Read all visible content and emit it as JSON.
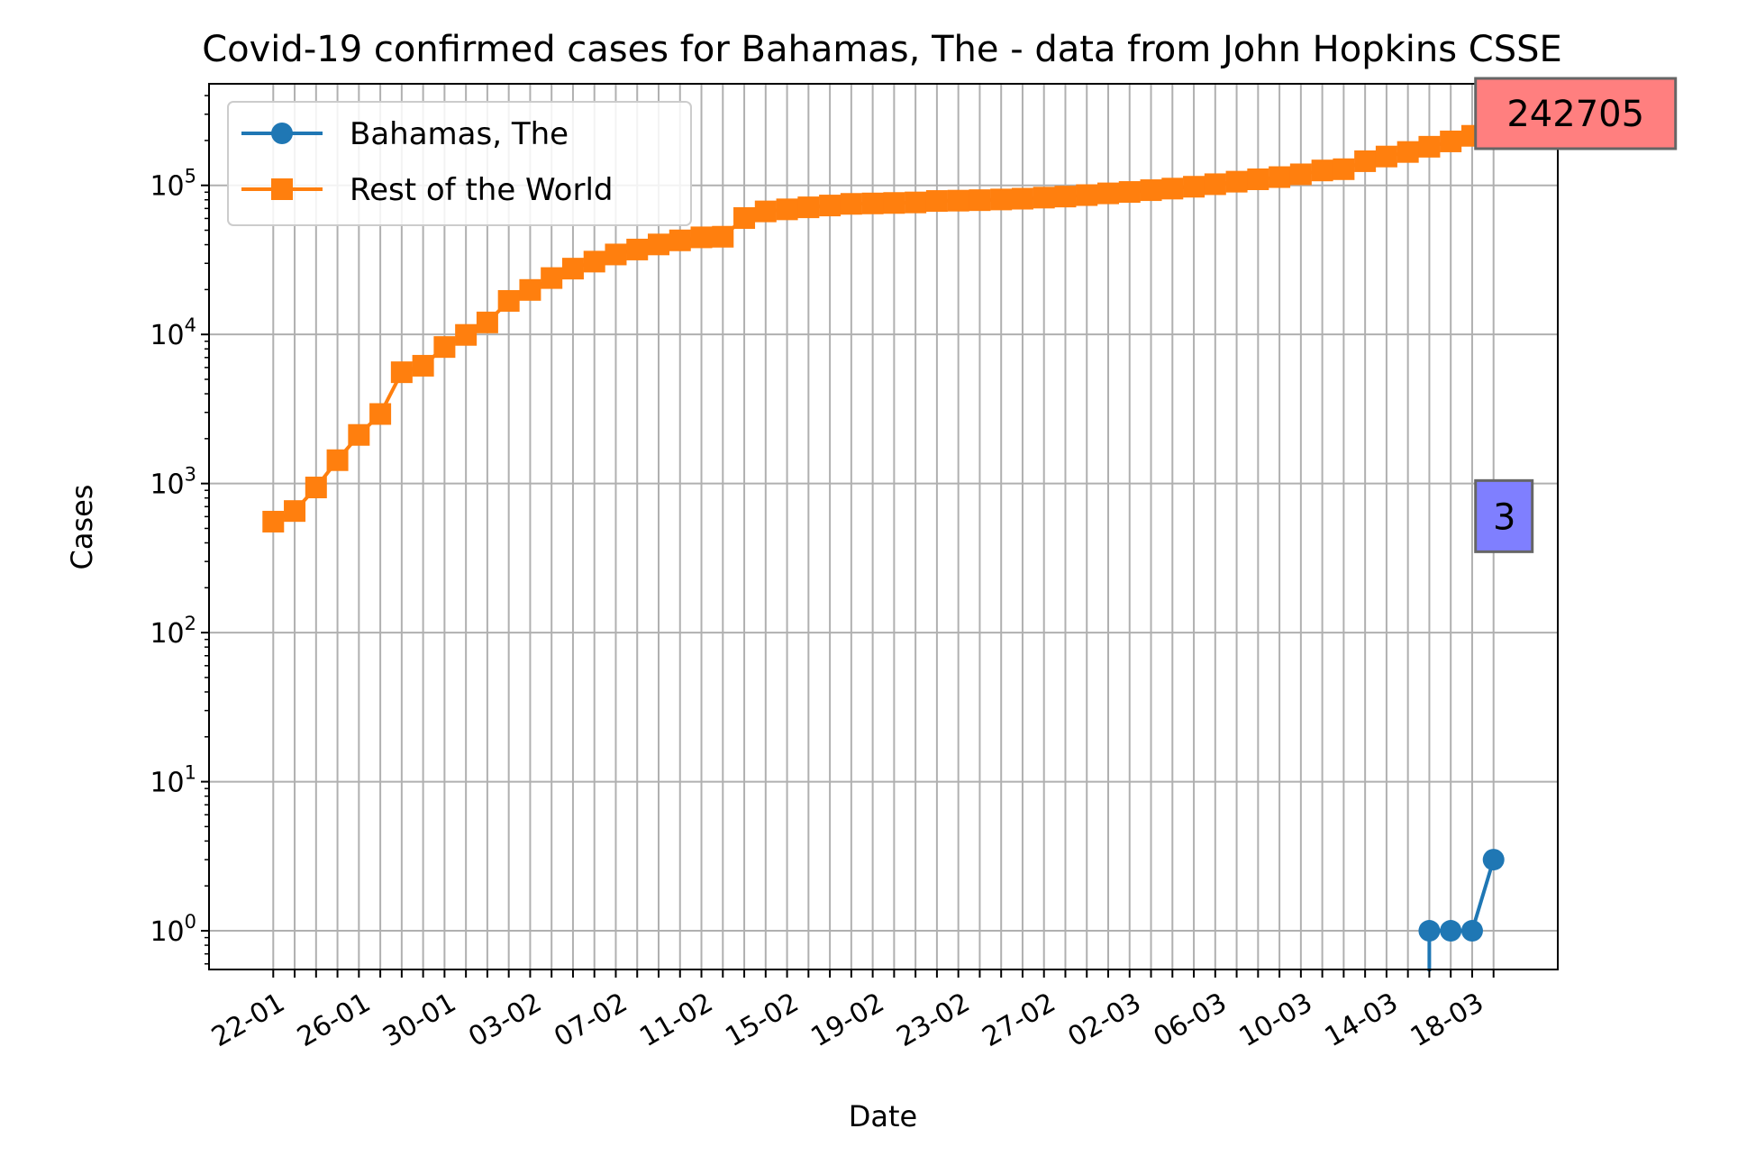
{
  "chart_data": {
    "type": "line",
    "title": "Covid-19 confirmed cases for Bahamas, The - data from John Hopkins CSSE",
    "xlabel": "Date",
    "ylabel": "Cases",
    "y_scale": "log",
    "ylim": [
      0.55,
      480000
    ],
    "y_ticks": [
      {
        "value": 1,
        "base": "10",
        "exp": "0"
      },
      {
        "value": 10,
        "base": "10",
        "exp": "1"
      },
      {
        "value": 100,
        "base": "10",
        "exp": "2"
      },
      {
        "value": 1000,
        "base": "10",
        "exp": "3"
      },
      {
        "value": 10000,
        "base": "10",
        "exp": "4"
      },
      {
        "value": 100000,
        "base": "10",
        "exp": "5"
      }
    ],
    "x_start": "2020-01-22",
    "x_end": "2020-03-19",
    "xlim": [
      "2020-01-19",
      "2020-03-22"
    ],
    "x_tick_labels": [
      "22-01",
      "26-01",
      "30-01",
      "03-02",
      "07-02",
      "11-02",
      "15-02",
      "19-02",
      "23-02",
      "27-02",
      "02-03",
      "06-03",
      "10-03",
      "14-03",
      "18-03"
    ],
    "grid": true,
    "legend_position": "upper-left",
    "series": [
      {
        "name": "Bahamas, The",
        "color": "#1f77b4",
        "marker": "circle",
        "dates": [
          "2020-03-16",
          "2020-03-17",
          "2020-03-18",
          "2020-03-19"
        ],
        "values": [
          1,
          1,
          1,
          3
        ]
      },
      {
        "name": "Rest of the World",
        "color": "#ff7f0e",
        "marker": "square",
        "values": [
          555,
          654,
          941,
          1434,
          2118,
          2927,
          5578,
          6166,
          8234,
          9927,
          12038,
          16787,
          19881,
          23892,
          27635,
          30794,
          34391,
          37120,
          40150,
          42762,
          44802,
          45221,
          60368,
          66885,
          69030,
          71224,
          73258,
          75136,
          75639,
          76197,
          76819,
          78572,
          78958,
          79561,
          80406,
          81388,
          82746,
          84112,
          86011,
          88369,
          90306,
          92840,
          95120,
          97886,
          101801,
          105847,
          109821,
          113590,
          118582,
          125865,
          128343,
          145193,
          156097,
          167449,
          181546,
          197142,
          214910,
          242705
        ]
      }
    ],
    "annotations": [
      {
        "text": "242705",
        "series": "Rest of the World",
        "color": "#ff7f7f"
      },
      {
        "text": "3",
        "series": "Bahamas, The",
        "color": "#7f7fff"
      }
    ]
  }
}
